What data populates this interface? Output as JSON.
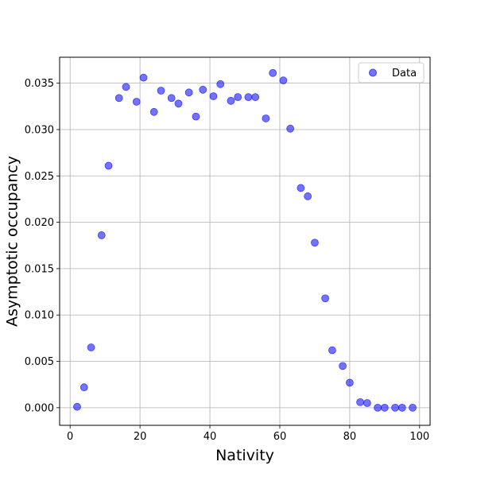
{
  "chart_data": {
    "type": "scatter",
    "title": "",
    "xlabel": "Nativity",
    "ylabel": "Asymptotic occupancy",
    "xlim": [
      -3,
      103
    ],
    "ylim": [
      -0.0019,
      0.0378
    ],
    "xticks": [
      0,
      20,
      40,
      60,
      80,
      100
    ],
    "yticks": [
      0.0,
      0.005,
      0.01,
      0.015,
      0.02,
      0.025,
      0.03,
      0.035
    ],
    "ytick_labels": [
      "0.000",
      "0.005",
      "0.010",
      "0.015",
      "0.020",
      "0.025",
      "0.030",
      "0.035"
    ],
    "xtick_labels": [
      "0",
      "20",
      "40",
      "60",
      "80",
      "100"
    ],
    "grid": true,
    "legend_position": "top-right",
    "series": [
      {
        "name": "Data",
        "color": "#0000ff",
        "alpha": 0.55,
        "x": [
          2,
          4,
          6,
          9,
          11,
          14,
          16,
          19,
          21,
          24,
          26,
          29,
          31,
          34,
          36,
          38,
          41,
          43,
          46,
          48,
          51,
          53,
          56,
          58,
          61,
          63,
          66,
          68,
          70,
          73,
          75,
          78,
          80,
          83,
          85,
          88,
          90,
          93,
          95,
          98
        ],
        "y": [
          0.0001,
          0.0022,
          0.0065,
          0.0186,
          0.0261,
          0.0334,
          0.0346,
          0.033,
          0.0356,
          0.0319,
          0.0342,
          0.0334,
          0.0328,
          0.034,
          0.0314,
          0.0343,
          0.0336,
          0.0349,
          0.0331,
          0.0335,
          0.0335,
          0.0335,
          0.0312,
          0.0361,
          0.0353,
          0.0301,
          0.0237,
          0.0228,
          0.0178,
          0.0118,
          0.0062,
          0.0045,
          0.0027,
          0.0006,
          0.0005,
          0.0,
          0.0,
          0.0,
          0.0,
          0.0
        ]
      }
    ]
  }
}
